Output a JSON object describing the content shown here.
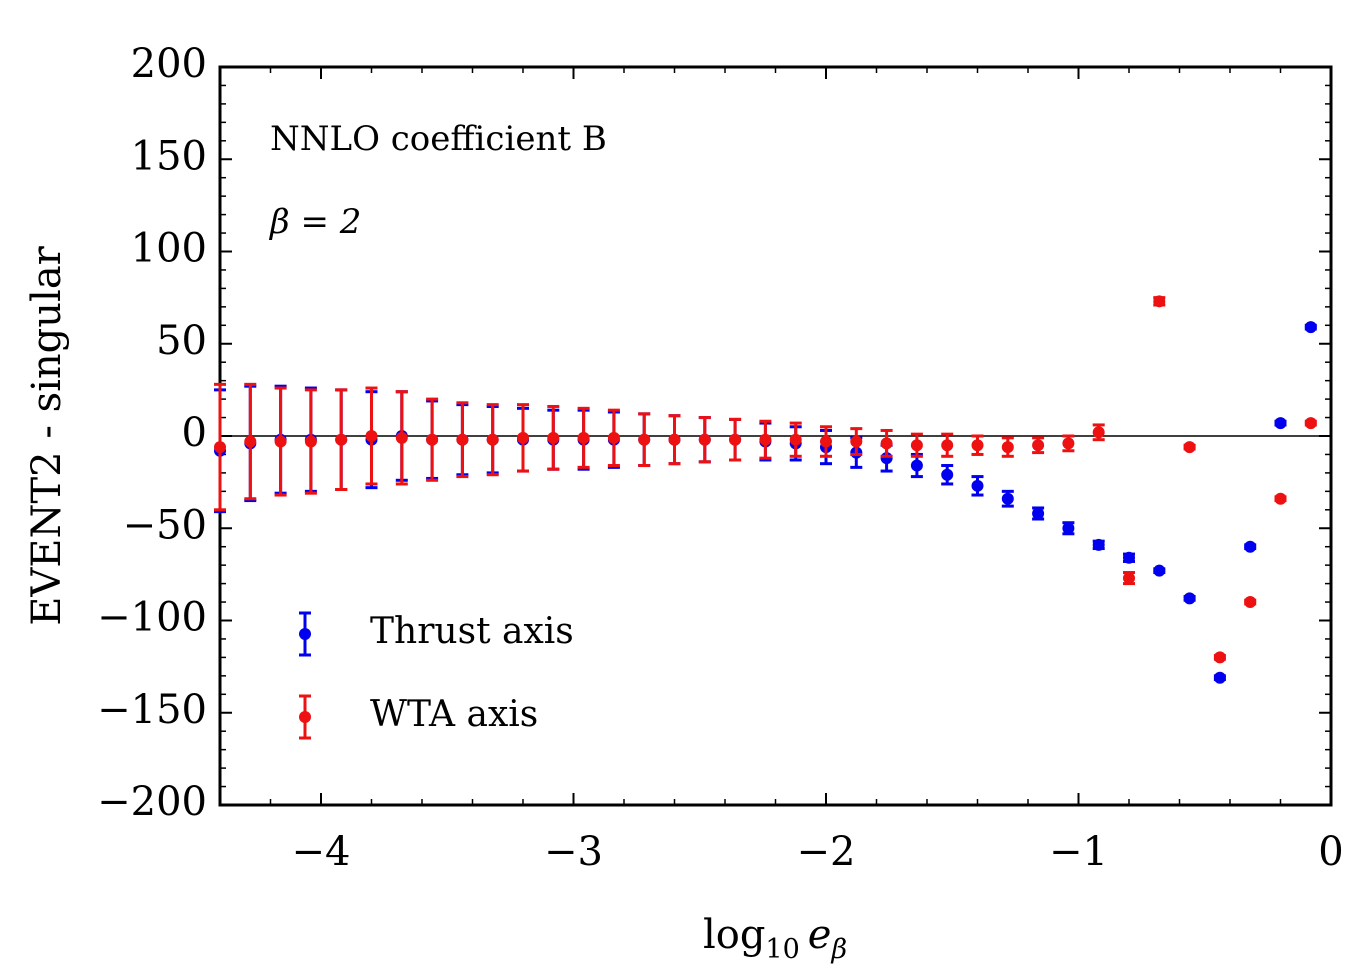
{
  "chart_data": {
    "type": "scatter",
    "title": "",
    "xlabel": "log10 eβ",
    "xlabel_parts": {
      "base": "log",
      "base_sub": "10",
      "var": "e",
      "var_sub": "β"
    },
    "ylabel": "EVENT2 - singular",
    "xlim": [
      -4.4,
      0
    ],
    "ylim": [
      -200,
      200
    ],
    "x_ticks": [
      -4,
      -3,
      -2,
      -1,
      0
    ],
    "x_tick_labels": [
      "−4",
      "−3",
      "−2",
      "−1",
      "0"
    ],
    "y_ticks": [
      200,
      150,
      100,
      50,
      0,
      -50,
      -100,
      -150,
      -200
    ],
    "y_tick_labels": [
      "200",
      "150",
      "100",
      "50",
      "0",
      "−50",
      "−100",
      "−150",
      "−200"
    ],
    "reference_line_y": 0,
    "annotations": [
      "NNLO coefficient B",
      "β = 2"
    ],
    "legend_position": "bottom-left",
    "series": [
      {
        "name": "Thrust axis",
        "color": "#0000ee",
        "x": [
          -4.4,
          -4.28,
          -4.16,
          -4.04,
          -3.92,
          -3.8,
          -3.68,
          -3.56,
          -3.44,
          -3.32,
          -3.2,
          -3.08,
          -2.96,
          -2.84,
          -2.72,
          -2.6,
          -2.48,
          -2.36,
          -2.24,
          -2.12,
          -2.0,
          -1.88,
          -1.76,
          -1.64,
          -1.52,
          -1.4,
          -1.28,
          -1.16,
          -1.04,
          -0.92,
          -0.8,
          -0.68,
          -0.56,
          -0.44,
          -0.32,
          -0.2,
          -0.08
        ],
        "y": [
          -8,
          -4,
          -2,
          -2,
          -2,
          -2,
          0,
          -2,
          -2,
          -2,
          -2,
          -2,
          -2,
          -2,
          -2,
          -2,
          -2,
          -2,
          -3,
          -4,
          -6,
          -9,
          -12,
          -16,
          -21,
          -27,
          -34,
          -42,
          -50,
          -59,
          -66,
          -73,
          -88,
          -131,
          -60,
          7,
          59
        ],
        "err": [
          33,
          31,
          29,
          28,
          27,
          26,
          24,
          21,
          19,
          18,
          17,
          16,
          16,
          15,
          14,
          13,
          12,
          11,
          10,
          9,
          9,
          8,
          7,
          6,
          5,
          5,
          4,
          3,
          3,
          2,
          2,
          1,
          1,
          1,
          1,
          1,
          1
        ]
      },
      {
        "name": "WTA axis",
        "color": "#ee1111",
        "x": [
          -4.4,
          -4.28,
          -4.16,
          -4.04,
          -3.92,
          -3.8,
          -3.68,
          -3.56,
          -3.44,
          -3.32,
          -3.2,
          -3.08,
          -2.96,
          -2.84,
          -2.72,
          -2.6,
          -2.48,
          -2.36,
          -2.24,
          -2.12,
          -2.0,
          -1.88,
          -1.76,
          -1.64,
          -1.52,
          -1.4,
          -1.28,
          -1.16,
          -1.04,
          -0.92,
          -0.8,
          -0.68,
          -0.56,
          -0.44,
          -0.32,
          -0.2,
          -0.08
        ],
        "y": [
          -6,
          -3,
          -3,
          -3,
          -2,
          0,
          -1,
          -2,
          -2,
          -2,
          -1,
          -1,
          -1,
          -1,
          -2,
          -2,
          -2,
          -2,
          -2,
          -2,
          -3,
          -3,
          -4,
          -5,
          -5,
          -5,
          -6,
          -5,
          -4,
          2,
          -77,
          73,
          -6,
          -120,
          -90,
          -34,
          7
        ],
        "err": [
          34,
          31,
          29,
          28,
          27,
          26,
          25,
          22,
          20,
          19,
          18,
          17,
          16,
          15,
          14,
          13,
          12,
          11,
          10,
          9,
          8,
          7,
          7,
          6,
          6,
          5,
          5,
          4,
          4,
          4,
          3,
          2,
          1,
          1,
          1,
          1,
          1
        ]
      }
    ]
  }
}
